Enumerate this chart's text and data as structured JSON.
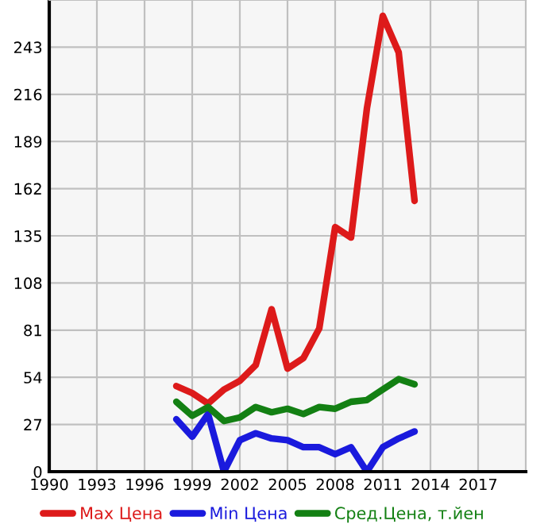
{
  "chart_data": {
    "type": "line",
    "x": [
      1998,
      1999,
      2000,
      2001,
      2002,
      2003,
      2004,
      2005,
      2006,
      2007,
      2008,
      2009,
      2010,
      2011,
      2012,
      2013
    ],
    "series": [
      {
        "name": "Max Цена",
        "color": "#dd1a1a",
        "values": [
          49,
          45,
          39,
          47,
          52,
          61,
          93,
          59,
          65,
          82,
          140,
          134,
          208,
          261,
          240,
          155
        ]
      },
      {
        "name": "Min Цена",
        "color": "#1a1add",
        "values": [
          30,
          20,
          33,
          0,
          18,
          22,
          19,
          18,
          14,
          14,
          10,
          14,
          0,
          14,
          19,
          23
        ]
      },
      {
        "name": "Сред.Цена, т.йен",
        "color": "#138013",
        "values": [
          40,
          32,
          37,
          29,
          31,
          37,
          34,
          36,
          33,
          37,
          36,
          40,
          41,
          47,
          53,
          50
        ]
      }
    ],
    "xlim": [
      1990,
      2020
    ],
    "xticks": [
      1990,
      1993,
      1996,
      1999,
      2002,
      2005,
      2008,
      2011,
      2014,
      2017
    ],
    "ylim": [
      0,
      270
    ],
    "yticks": [
      0,
      27,
      54,
      81,
      108,
      135,
      162,
      189,
      216,
      243
    ],
    "grid": true,
    "legend": "bottom",
    "line_style": "solid",
    "marker": "none"
  }
}
